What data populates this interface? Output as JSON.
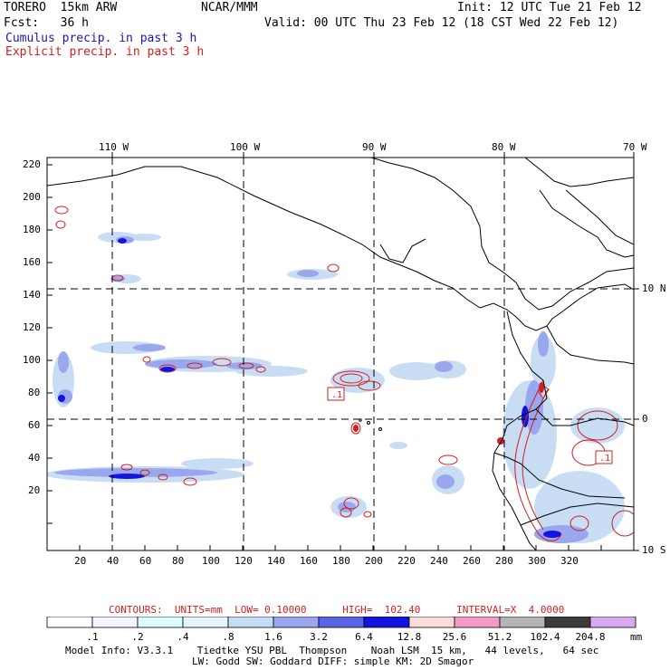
{
  "header": {
    "model": "TORERO  15km ARW",
    "org": "NCAR/MMM",
    "init": "Init: 12 UTC Tue 21 Feb 12",
    "fcst": "Fcst:   36 h",
    "valid": "Valid: 00 UTC Thu 23 Feb 12 (18 CST Wed 22 Feb 12)",
    "field1": "Cumulus precip. in past 3 h",
    "field2": "Explicit precip. in past 3 h"
  },
  "axes": {
    "top_lon_labels": [
      "110 W",
      "100 W",
      "90 W",
      "80 W",
      "70 W"
    ],
    "right_lat_labels": [
      "10 N",
      "0",
      "10 S"
    ],
    "left_y_labels": [
      "220",
      "200",
      "180",
      "160",
      "140",
      "120",
      "100",
      "80",
      "60",
      "40",
      "20"
    ],
    "bottom_x_labels": [
      "20",
      "40",
      "60",
      "80",
      "100",
      "120",
      "140",
      "160",
      "180",
      "200",
      "220",
      "240",
      "260",
      "280",
      "300",
      "320"
    ]
  },
  "contours": {
    "label": "CONTOURS:  UNITS=mm  LOW= 0.10000      HIGH=  102.40      INTERVAL=X  4.0000"
  },
  "colorbar": {
    "labels": [
      ".1",
      ".2",
      ".4",
      ".8",
      "1.6",
      "3.2",
      "6.4",
      "12.8",
      "25.6",
      "51.2",
      "102.4",
      "204.8"
    ],
    "unit": "mm",
    "colors": [
      "#ffffff",
      "#f2f4ff",
      "#dcfbfb",
      "#e8f4fc",
      "#c6dcf4",
      "#9aa6ee",
      "#5a64e6",
      "#1414e0",
      "#fadcdc",
      "#f59ac8",
      "#b4b4b4",
      "#3c3c3c",
      "#d8a8f0"
    ]
  },
  "footer": {
    "line1": "Model Info: V3.3.1    Tiedtke YSU PBL  Thompson    Noah LSM  15 km,   44 levels,   64 sec",
    "line2": "LW: Godd SW: Goddard DIFF: simple KM: 2D Smagor"
  },
  "map_labels": {
    "box1": ".1",
    "box2": ".1"
  }
}
